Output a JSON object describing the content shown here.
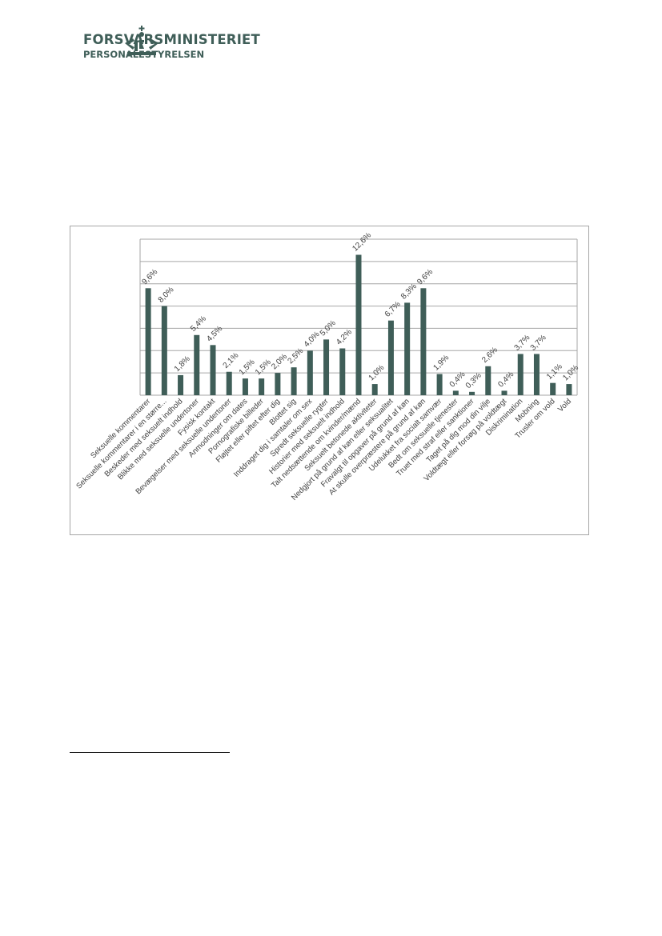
{
  "header": {
    "org_name": "FORSVARSMINISTERIET",
    "sub_org": "PERSONALESTYRELSEN",
    "brand_color": "#3f5e58"
  },
  "chart_data": {
    "type": "bar",
    "title": "",
    "xlabel": "",
    "ylabel": "",
    "ylim": [
      0,
      14
    ],
    "grid": true,
    "legend": "none",
    "bar_color": "#3f5e58",
    "categories": [
      "Seksuelle kommentarer",
      "Seksuelle kommentarer i en større...",
      "Beskeder med seksuelt indhold",
      "Blikke med seksuelle undertoner",
      "Fysisk kontakt",
      "Bevægelser med seksuelle undertoner",
      "Anmodninger om dates",
      "Pornografiske billeder",
      "Fløjtet eller piftet efter dig",
      "Blottet sig",
      "Inddraget dig i samtaler om sex",
      "Spredt seksuelle rygter",
      "Historier med seksuelt indhold",
      "Talt nedsættende om kvinder/mænd",
      "Seksuelt betonede aktiviteter",
      "Nedgjort på grund af køn eller seksualitet",
      "Fravalgt til opgaver på grund af køn",
      "At skulle overpræstere på grund af køn",
      "Udelukket fra socialt samvær",
      "Bedt om seksuelle tjenester",
      "Truet med straf eller sanktioner",
      "Taget på dig mod din vilje",
      "Voldtægt eller forsøg på voldtægt",
      "Diskrimination",
      "Mobning",
      "Trusler om vold",
      "Vold"
    ],
    "values": [
      9.6,
      8.0,
      1.8,
      5.4,
      4.5,
      2.1,
      1.5,
      1.5,
      2.0,
      2.5,
      4.0,
      5.0,
      4.2,
      12.6,
      1.0,
      6.7,
      8.3,
      9.6,
      1.9,
      0.4,
      0.3,
      2.6,
      0.4,
      3.7,
      3.7,
      1.1,
      1.0
    ],
    "labels": [
      "9,6%",
      "8,0%",
      "1,8%",
      "5,4%",
      "4,5%",
      "2,1%",
      "1,5%",
      "1,5%",
      "2,0%",
      "2,5%",
      "4,0%",
      "5,0%",
      "4,2%",
      "12,6%",
      "1,0%",
      "6,7%",
      "8,3%",
      "9,6%",
      "1,9%",
      "0,4%",
      "0,3%",
      "2,6%",
      "0,4%",
      "3,7%",
      "3,7%",
      "1,1%",
      "1,0%"
    ]
  }
}
